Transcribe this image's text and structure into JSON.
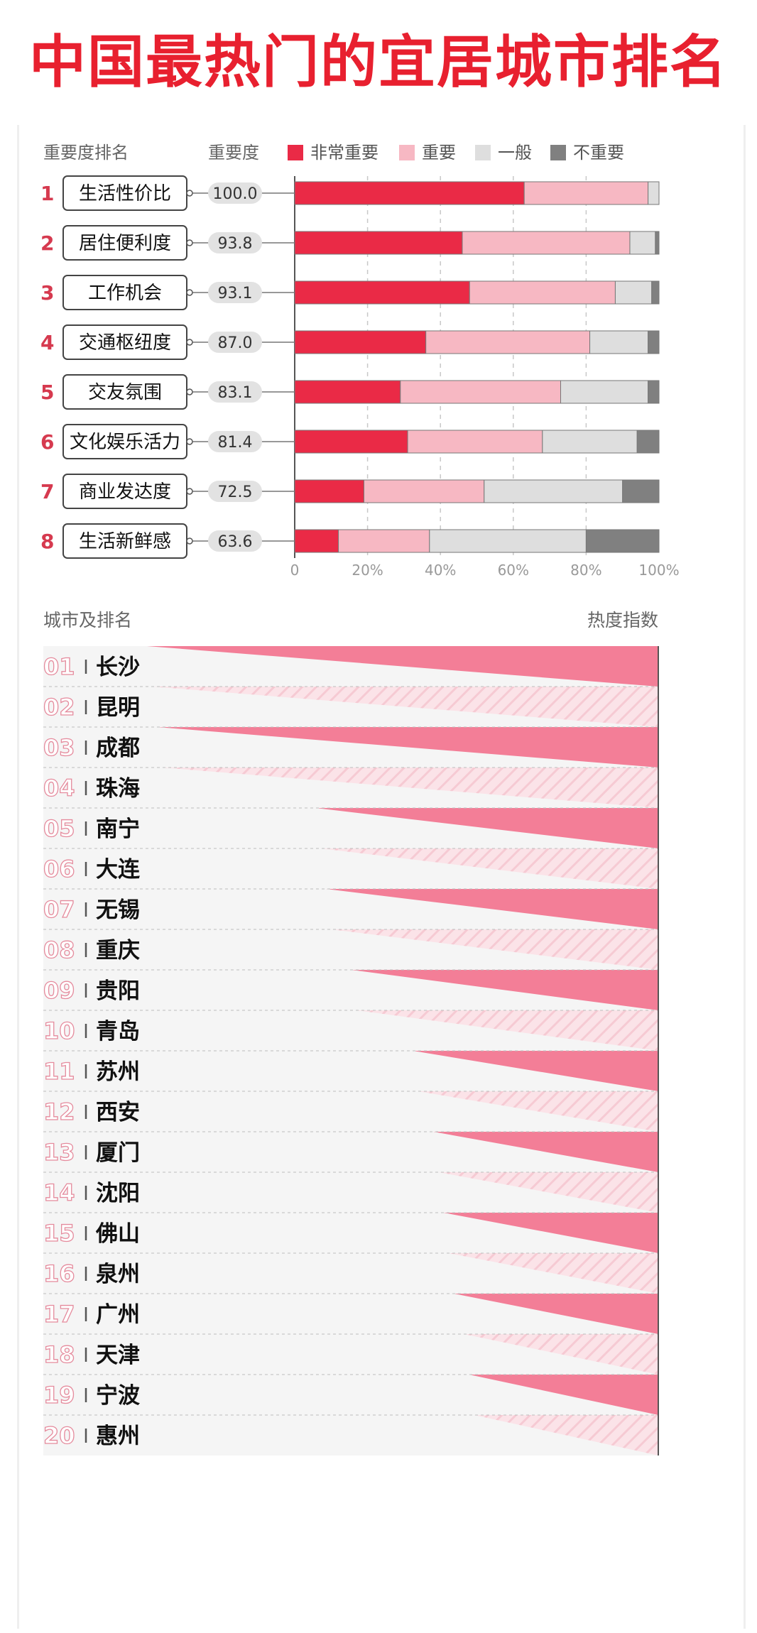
{
  "title": "中国最热门的宜居城市排名",
  "colors": {
    "title_red": "#e8202f",
    "very_important": "#ea2a46",
    "important": "#f7b8c3",
    "average": "#dedede",
    "not_important": "#808080",
    "rank_red": "#d63a4f",
    "heat_pink": "#f37e97"
  },
  "chart_data": [
    {
      "type": "bar",
      "stacked": true,
      "orientation": "horizontal",
      "header_rank": "重要度排名",
      "header_score": "重要度",
      "legend": [
        "非常重要",
        "重要",
        "一般",
        "不重要"
      ],
      "legend_position": "top",
      "ranks": [
        "1",
        "2",
        "3",
        "4",
        "5",
        "6",
        "7",
        "8"
      ],
      "categories": [
        "生活性价比",
        "居住便利度",
        "工作机会",
        "交通枢纽度",
        "交友氛围",
        "文化娱乐活力",
        "商业发达度",
        "生活新鲜感"
      ],
      "scores": [
        "100.0",
        "93.8",
        "93.1",
        "87.0",
        "83.1",
        "81.4",
        "72.5",
        "63.6"
      ],
      "series": [
        {
          "name": "非常重要",
          "values": [
            63,
            46,
            48,
            36,
            29,
            31,
            19,
            12
          ]
        },
        {
          "name": "重要",
          "values": [
            34,
            46,
            40,
            45,
            44,
            37,
            33,
            25
          ]
        },
        {
          "name": "一般",
          "values": [
            3,
            7,
            10,
            16,
            24,
            26,
            38,
            43
          ]
        },
        {
          "name": "不重要",
          "values": [
            0,
            1,
            2,
            3,
            3,
            6,
            10,
            20
          ]
        }
      ],
      "xlim": [
        0,
        100
      ],
      "xticks": [
        "0",
        "20%",
        "40%",
        "60%",
        "80%",
        "100%"
      ],
      "grid": true
    },
    {
      "type": "bar",
      "header_city": "城市及排名",
      "header_heat": "热度指数",
      "ranks": [
        "01",
        "02",
        "03",
        "04",
        "05",
        "06",
        "07",
        "08",
        "09",
        "10",
        "11",
        "12",
        "13",
        "14",
        "15",
        "16",
        "17",
        "18",
        "19",
        "20"
      ],
      "categories": [
        "长沙",
        "昆明",
        "成都",
        "珠海",
        "南宁",
        "大连",
        "无锡",
        "重庆",
        "贵阳",
        "青岛",
        "苏州",
        "西安",
        "厦门",
        "沈阳",
        "佛山",
        "泉州",
        "广州",
        "天津",
        "宁波",
        "惠州"
      ],
      "values": [
        100,
        99,
        98,
        97,
        67,
        66,
        65,
        64,
        60,
        59,
        48,
        47,
        44,
        43,
        42,
        41,
        40,
        38,
        37,
        36
      ],
      "xlim": [
        0,
        100
      ]
    }
  ]
}
